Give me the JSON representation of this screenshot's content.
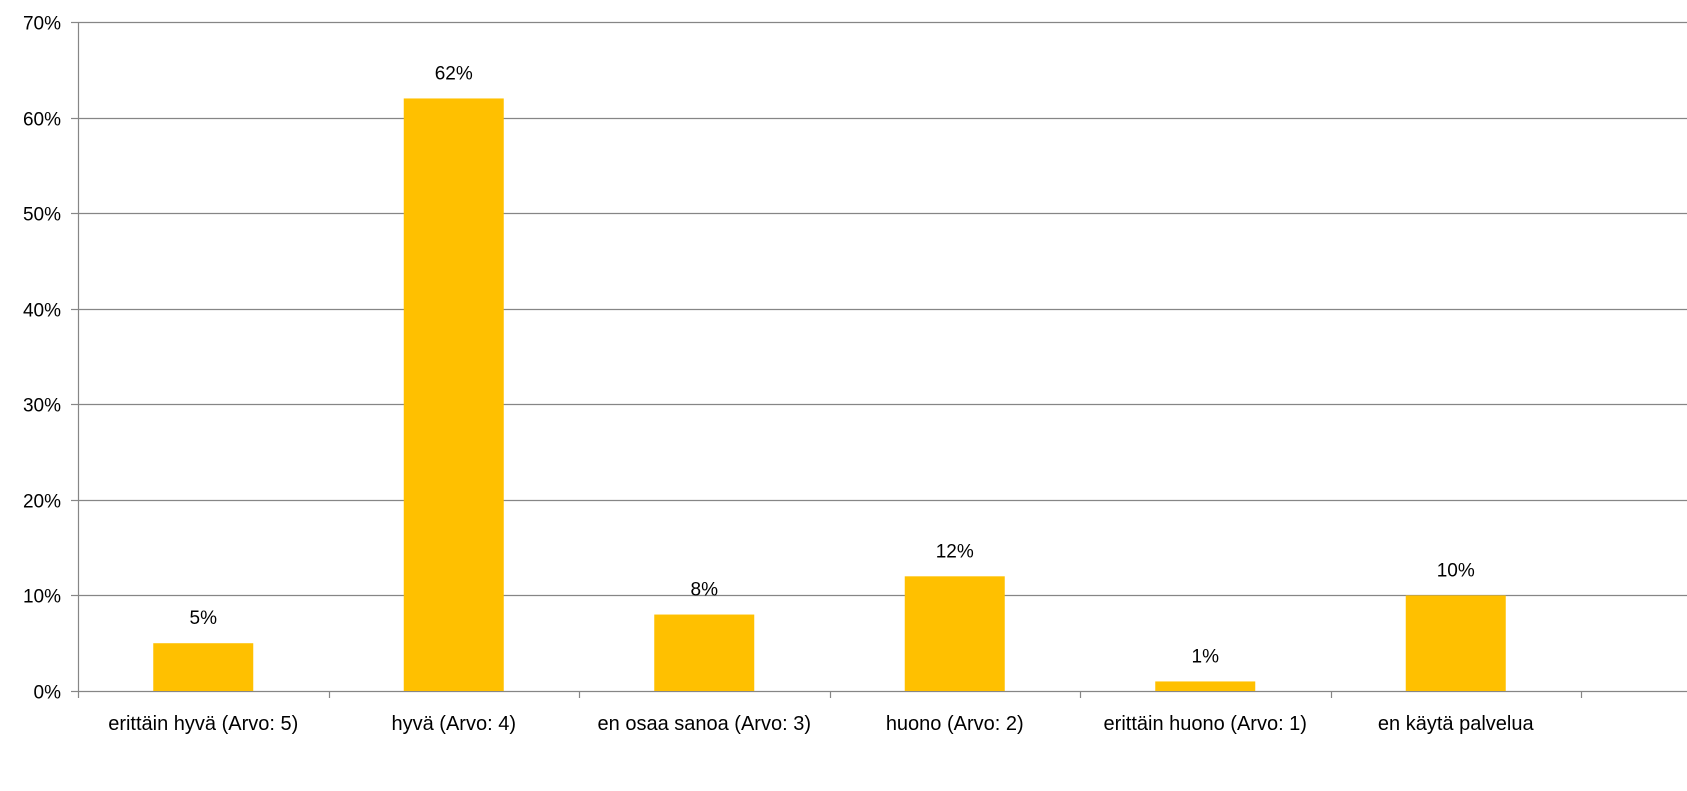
{
  "chart_data": {
    "type": "bar",
    "categories": [
      "erittäin hyvä (Arvo: 5)",
      "hyvä (Arvo: 4)",
      "en osaa sanoa (Arvo: 3)",
      "huono (Arvo: 2)",
      "erittäin huono (Arvo: 1)",
      "en käytä palvelua"
    ],
    "values": [
      5,
      62,
      8,
      12,
      1,
      10
    ],
    "data_labels": [
      "5%",
      "62%",
      "8%",
      "12%",
      "1%",
      "10%"
    ],
    "title": "",
    "xlabel": "",
    "ylabel": "",
    "ylim": [
      0,
      70
    ],
    "yticks": [
      0,
      10,
      20,
      30,
      40,
      50,
      60,
      70
    ],
    "ytick_labels": [
      "0%",
      "10%",
      "20%",
      "30%",
      "40%",
      "50%",
      "60%",
      "70%"
    ],
    "grid": true,
    "legend": "none",
    "bar_color": "#FFC000",
    "grid_color": "#868686",
    "axis_color": "#868686"
  }
}
